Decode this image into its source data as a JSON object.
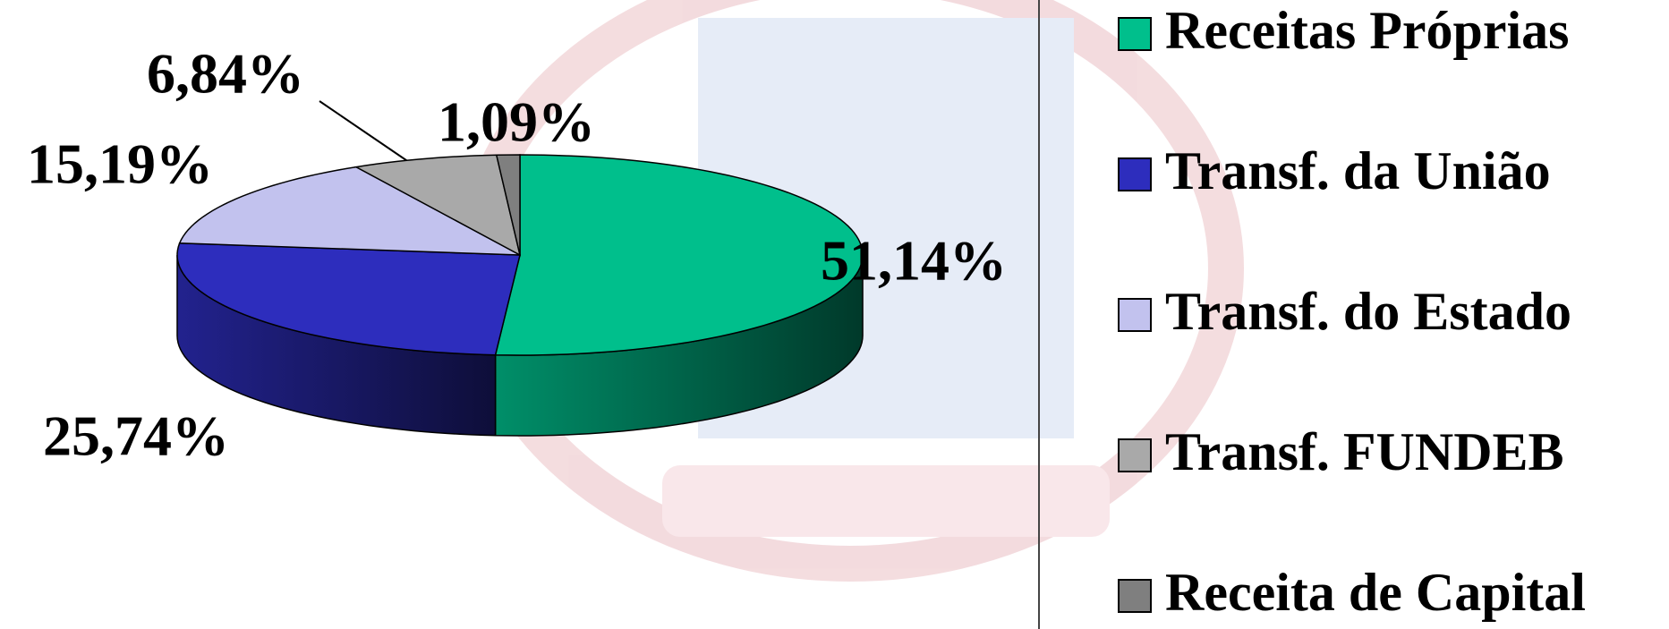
{
  "chart_data": {
    "type": "pie",
    "categories": [
      "Receitas Próprias",
      "Transf. da União",
      "Transf. do Estado",
      "Transf. FUNDEB",
      "Receita de Capital"
    ],
    "values": [
      51.14,
      25.74,
      15.19,
      6.84,
      1.09
    ],
    "value_labels": [
      "51,14%",
      "25,74%",
      "15,19%",
      "6,84%",
      "1,09%"
    ],
    "colors": [
      "#00bf8c",
      "#2d2dbd",
      "#c2c2ee",
      "#a9a9a9",
      "#7f7f7f"
    ],
    "legend": "right"
  }
}
